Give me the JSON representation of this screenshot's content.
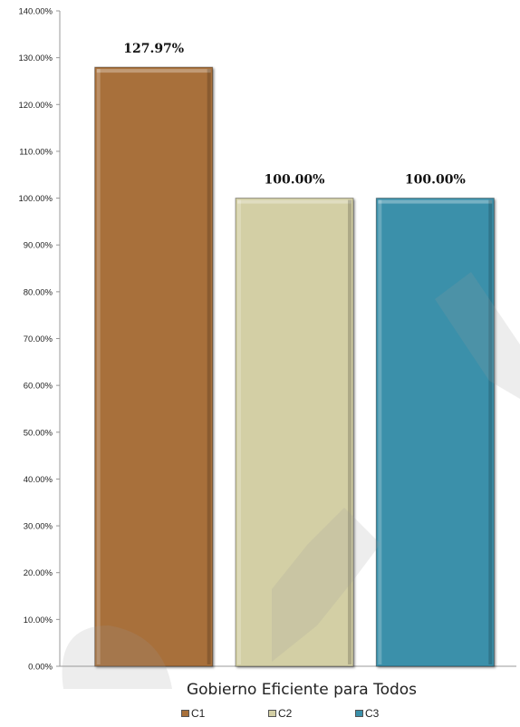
{
  "chart_data": {
    "type": "bar",
    "ylim": [
      0,
      140
    ],
    "yticks": [
      0,
      10,
      20,
      30,
      40,
      50,
      60,
      70,
      80,
      90,
      100,
      110,
      120,
      130,
      140
    ],
    "ytick_labels": [
      "0.00%",
      "10.00%",
      "20.00%",
      "30.00%",
      "40.00%",
      "50.00%",
      "60.00%",
      "70.00%",
      "80.00%",
      "90.00%",
      "100.00%",
      "110.00%",
      "120.00%",
      "130.00%",
      "140.00%"
    ],
    "category": "Gobierno Eficiente para Todos",
    "series": [
      {
        "name": "C1",
        "value": 127.97,
        "label": "127.97%",
        "color": "#a8703a"
      },
      {
        "name": "C2",
        "value": 100.0,
        "label": "100.00%",
        "color": "#d3cfa5"
      },
      {
        "name": "C3",
        "value": 100.0,
        "label": "100.00%",
        "color": "#3a90aa"
      }
    ],
    "legend_position": "bottom",
    "grid": false
  }
}
